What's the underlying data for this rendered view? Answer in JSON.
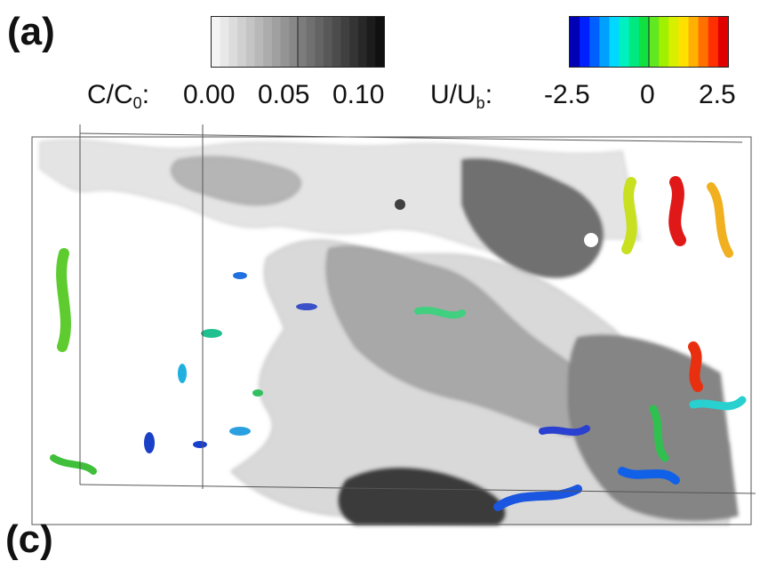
{
  "panels": {
    "a": "(a)",
    "c": "(c)"
  },
  "concentration_legend": {
    "label_main": "C/C",
    "label_sub": "0",
    "label_suffix": ":",
    "ticks": [
      "0.00",
      "0.05",
      "0.10"
    ],
    "colors": [
      "#f4f4f4",
      "#e8e8e8",
      "#dcdcdc",
      "#d0d0d0",
      "#c4c4c4",
      "#b8b8b8",
      "#acacac",
      "#a0a0a0",
      "#949494",
      "#888888",
      "#7c7c7c",
      "#707070",
      "#646464",
      "#585858",
      "#4c4c4c",
      "#404040",
      "#343434",
      "#282828",
      "#1c1c1c",
      "#101010"
    ]
  },
  "velocity_legend": {
    "label_main": "U/U",
    "label_sub": "b",
    "label_suffix": ":",
    "ticks": [
      "-2.5",
      "0",
      "2.5"
    ],
    "colors": [
      "#0000b4",
      "#0020ff",
      "#0060ff",
      "#00a0ff",
      "#00d8ff",
      "#00f0c0",
      "#00e880",
      "#10e040",
      "#60e820",
      "#a0f000",
      "#d8f000",
      "#ffe000",
      "#ffb000",
      "#ff7000",
      "#ff3000",
      "#e00000"
    ]
  }
}
